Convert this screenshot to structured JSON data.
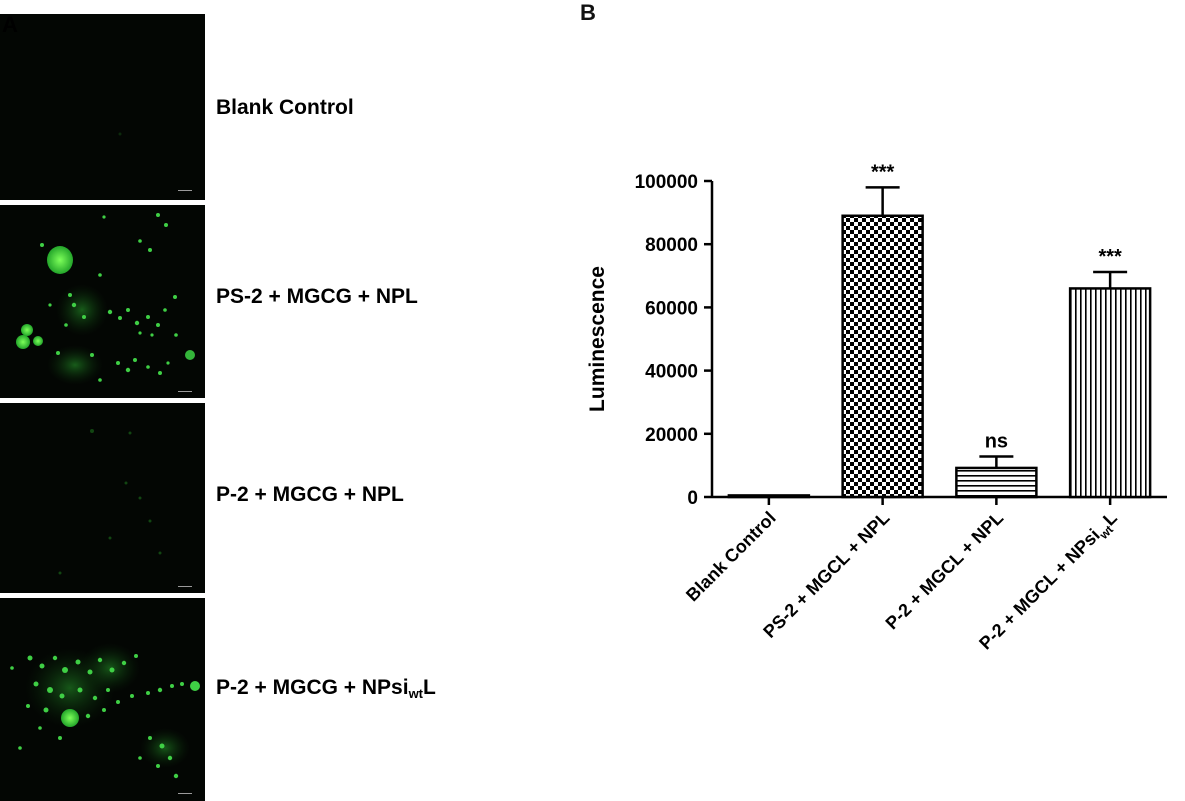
{
  "panel_a": {
    "letter": "A",
    "rows": [
      {
        "label": "Blank Control",
        "label_sub": "",
        "label_end": ""
      },
      {
        "label": "PS-2 + MGCG + NPL",
        "label_sub": "",
        "label_end": ""
      },
      {
        "label": "P-2 + MGCG + NPL",
        "label_sub": "",
        "label_end": ""
      },
      {
        "label": "P-2 + MGCG + NPsi",
        "label_sub": "wt",
        "label_end": "L"
      }
    ],
    "fluorescence_color": "#2ecc40",
    "background_color": "#030603"
  },
  "panel_b": {
    "letter": "B"
  },
  "chart_data": {
    "type": "bar",
    "title": "",
    "xlabel": "",
    "ylabel": "Luminescence",
    "ylim": [
      0,
      100000
    ],
    "yticks": [
      0,
      20000,
      40000,
      60000,
      80000,
      100000
    ],
    "categories": [
      {
        "text": "Blank Control",
        "sub": "",
        "end": ""
      },
      {
        "text": "PS-2 + MGCL + NPL",
        "sub": "",
        "end": ""
      },
      {
        "text": "P-2 + MGCL + NPL",
        "sub": "",
        "end": ""
      },
      {
        "text": "P-2 + MGCL + NPsi",
        "sub": "wt",
        "end": "L"
      }
    ],
    "values": [
      500,
      89000,
      9200,
      66000
    ],
    "errors": [
      0,
      9000,
      3600,
      5200
    ],
    "significance": [
      "",
      "***",
      "ns",
      "***"
    ],
    "fill_patterns": [
      "solid-white",
      "checkerboard",
      "horizontal-stripes",
      "vertical-stripes"
    ],
    "grid": false
  }
}
